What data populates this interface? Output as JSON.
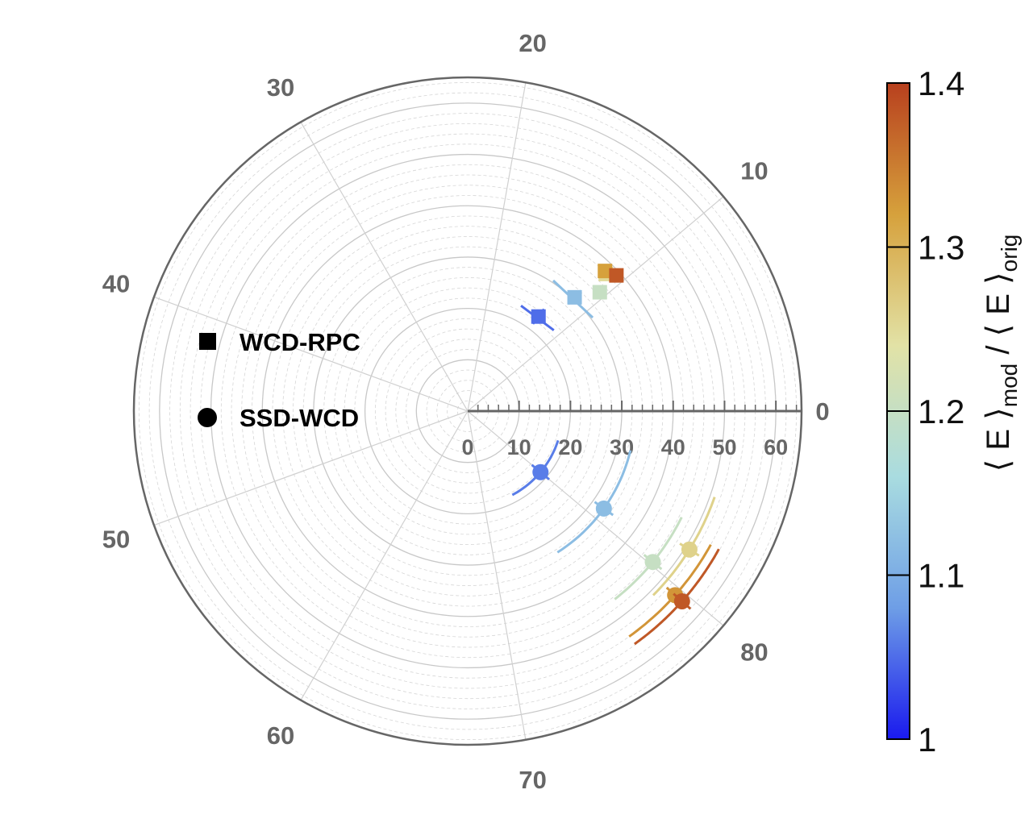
{
  "chart_data": {
    "type": "scatter",
    "subtype": "polar",
    "title": "",
    "angular_axis": {
      "range": [
        0,
        90
      ],
      "tick_labels": [
        "0",
        "10",
        "20",
        "30",
        "40",
        "50",
        "60",
        "70",
        "80"
      ]
    },
    "radial_axis": {
      "range": [
        0,
        65
      ],
      "tick_labels": [
        "0",
        "10",
        "20",
        "30",
        "40",
        "50",
        "60"
      ]
    },
    "grid": true,
    "legend": {
      "placement": "left",
      "entries": [
        {
          "marker": "square",
          "label": "WCD-RPC"
        },
        {
          "marker": "circle",
          "label": "SSD-WCD"
        }
      ]
    },
    "colorbar": {
      "title_parts": {
        "open": "⟨ E ⟩",
        "sub1": "mod",
        "slash": " / ",
        "open2": "⟨ E ⟩",
        "sub2": "orig"
      },
      "range": [
        1.0,
        1.4
      ],
      "tick_labels": [
        "1",
        "1.1",
        "1.2",
        "1.3",
        "1.4"
      ],
      "colors": [
        "#1a1aee",
        "#6e9ee6",
        "#a9dce0",
        "#e2e2a6",
        "#d6a13c",
        "#b8401e"
      ]
    },
    "series": [
      {
        "name": "WCD-RPC",
        "marker": "square",
        "points": [
          {
            "angle": 13.3,
            "r": 23.0,
            "ratio": 1.05
          },
          {
            "angle": 11.7,
            "r": 30.4,
            "ratio": 1.12
          },
          {
            "angle": 10.5,
            "r": 34.6,
            "ratio": 1.2
          },
          {
            "angle": 11.2,
            "r": 37.9,
            "ratio": 1.25
          },
          {
            "angle": 11.4,
            "r": 38.2,
            "ratio": 1.32
          },
          {
            "angle": 10.6,
            "r": 39.2,
            "ratio": 1.38
          }
        ]
      },
      {
        "name": "SSD-WCD",
        "marker": "circle",
        "points": [
          {
            "angle": 80.0,
            "r": 18.5,
            "ratio": 1.06
          },
          {
            "angle": 81.1,
            "r": 32.6,
            "ratio": 1.12
          },
          {
            "angle": 80.2,
            "r": 46.5,
            "ratio": 1.2
          },
          {
            "angle": 82.0,
            "r": 50.9,
            "ratio": 1.26
          },
          {
            "angle": 79.6,
            "r": 54.0,
            "ratio": 1.33
          },
          {
            "angle": 79.6,
            "r": 55.8,
            "ratio": 1.38
          }
        ]
      }
    ]
  }
}
